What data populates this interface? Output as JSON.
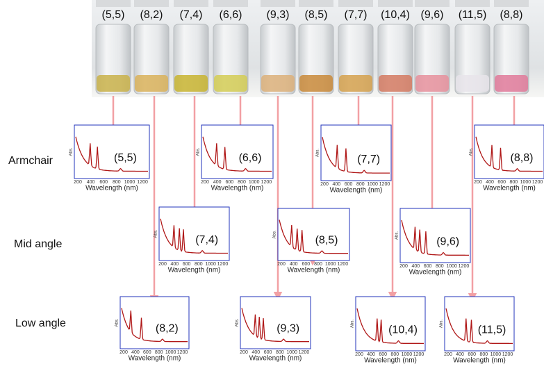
{
  "vials": [
    "(5,5)",
    "(8,2)",
    "(7,4)",
    "(6,6)",
    "(9,3)",
    "(8,5)",
    "(7,7)",
    "(10,4)",
    "(9,6)",
    "(11,5)",
    "(8,8)"
  ],
  "rows": [
    "Armchair",
    "Mid angle",
    "Low angle"
  ],
  "axis": {
    "y_label": "Abs.",
    "x_label": "Wavelength (nm)",
    "x_ticks": [
      "200",
      "400",
      "600",
      "800",
      "1000",
      "1200"
    ]
  },
  "panels": [
    "(5,5)",
    "(6,6)",
    "(7,7)",
    "(8,8)",
    "(7,4)",
    "(8,5)",
    "(9,6)",
    "(8,2)",
    "(9,3)",
    "(10,4)",
    "(11,5)"
  ]
}
